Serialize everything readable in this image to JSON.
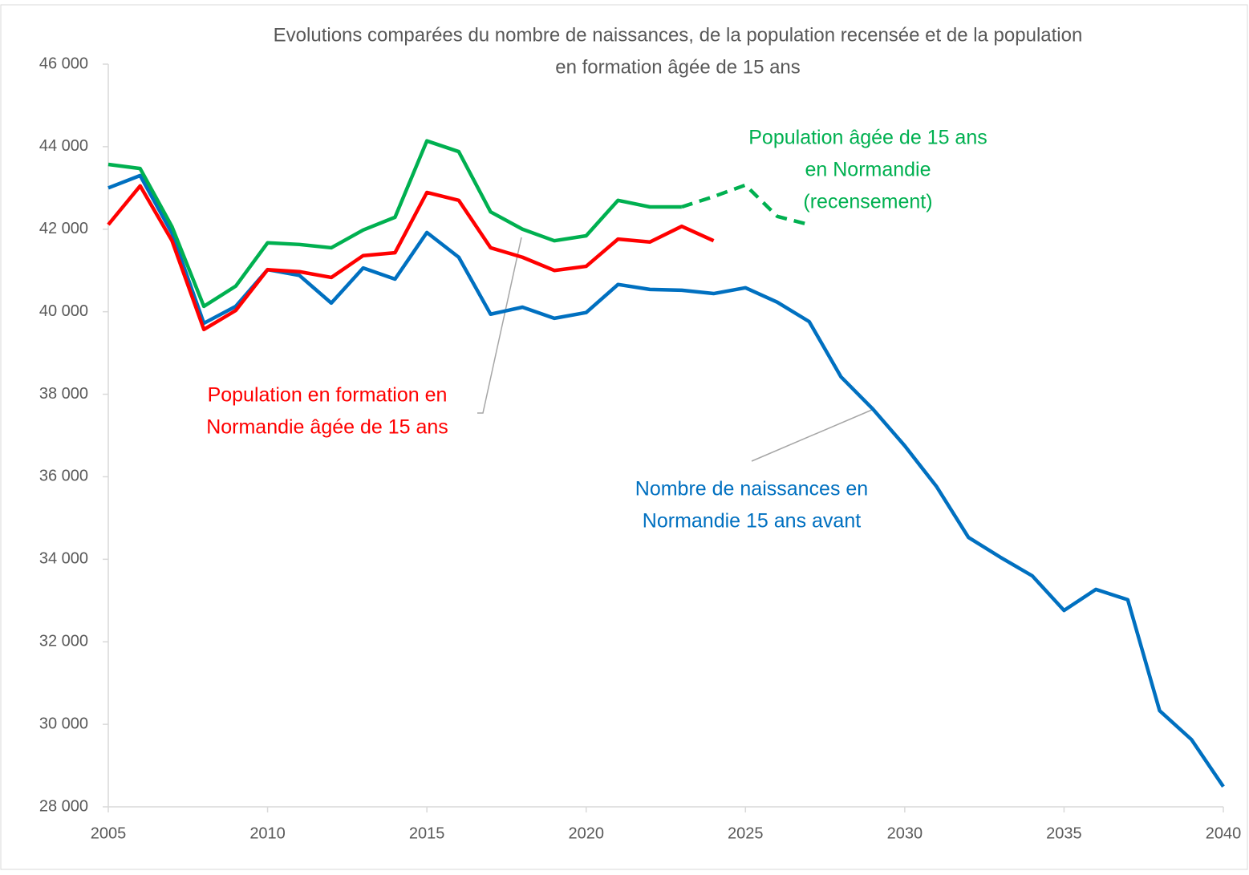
{
  "chart_data": {
    "type": "line",
    "title": [
      "Evolutions comparées du  nombre de naissances, de la population recensée et de la population",
      "en formation âgée de 15 ans"
    ],
    "x": [
      2005,
      2006,
      2007,
      2008,
      2009,
      2010,
      2011,
      2012,
      2013,
      2014,
      2015,
      2016,
      2017,
      2018,
      2019,
      2020,
      2021,
      2022,
      2023,
      2024,
      2025,
      2026,
      2027,
      2028,
      2029,
      2030,
      2031,
      2032,
      2033,
      2034,
      2035,
      2036,
      2037,
      2038,
      2039,
      2040
    ],
    "series": [
      {
        "color": "#0070c0",
        "values": [
          43000,
          43300,
          41900,
          39720,
          40130,
          41020,
          40880,
          40210,
          41060,
          40790,
          41920,
          41320,
          39940,
          40110,
          39840,
          39980,
          40660,
          40540,
          40520,
          40440,
          40580,
          40230,
          39760,
          38420,
          37640,
          36750,
          35760,
          34530,
          34050,
          33600,
          32760,
          33270,
          33020,
          30330,
          29630,
          28490
        ]
      },
      {
        "color": "#ff0000",
        "values": [
          42110,
          43050,
          41720,
          39570,
          40030,
          41020,
          40970,
          40830,
          41360,
          41430,
          42890,
          42700,
          41550,
          41320,
          41000,
          41100,
          41760,
          41690,
          42070,
          41720,
          null,
          null,
          null,
          null,
          null,
          null,
          null,
          null,
          null,
          null,
          null,
          null,
          null,
          null,
          null,
          null
        ]
      },
      {
        "color": "#00b050",
        "dashed_from_x": 2023,
        "values": [
          43570,
          43470,
          42060,
          40130,
          40620,
          41670,
          41630,
          41550,
          41980,
          42290,
          44140,
          43880,
          42420,
          42000,
          41720,
          41840,
          42700,
          42540,
          42540,
          42790,
          43070,
          42310,
          42110,
          null,
          null,
          null,
          null,
          null,
          null,
          null,
          null,
          null,
          null,
          null,
          null,
          null
        ]
      }
    ],
    "annotations": [
      {
        "series": 2,
        "lines": [
          "Population âgée de 15 ans",
          "en Normandie",
          "(recensement)"
        ]
      },
      {
        "series": 1,
        "lines": [
          "Population en formation en",
          "Normandie âgée de 15 ans"
        ]
      },
      {
        "series": 0,
        "lines": [
          "Nombre de naissances en",
          "Normandie 15 ans avant"
        ]
      }
    ],
    "xlim": [
      2005,
      2040
    ],
    "xticks": [
      2005,
      2010,
      2015,
      2020,
      2025,
      2030,
      2035,
      2040
    ],
    "ylim": [
      28000,
      46000
    ],
    "yticks": [
      {
        "value": 28000,
        "label": "28 000"
      },
      {
        "value": 30000,
        "label": "30 000"
      },
      {
        "value": 32000,
        "label": "32 000"
      },
      {
        "value": 34000,
        "label": "34 000"
      },
      {
        "value": 36000,
        "label": "36 000"
      },
      {
        "value": 38000,
        "label": "38 000"
      },
      {
        "value": 40000,
        "label": "40 000"
      },
      {
        "value": 42000,
        "label": "42 000"
      },
      {
        "value": 44000,
        "label": "44 000"
      },
      {
        "value": 46000,
        "label": "46 000"
      }
    ],
    "grid": false
  }
}
